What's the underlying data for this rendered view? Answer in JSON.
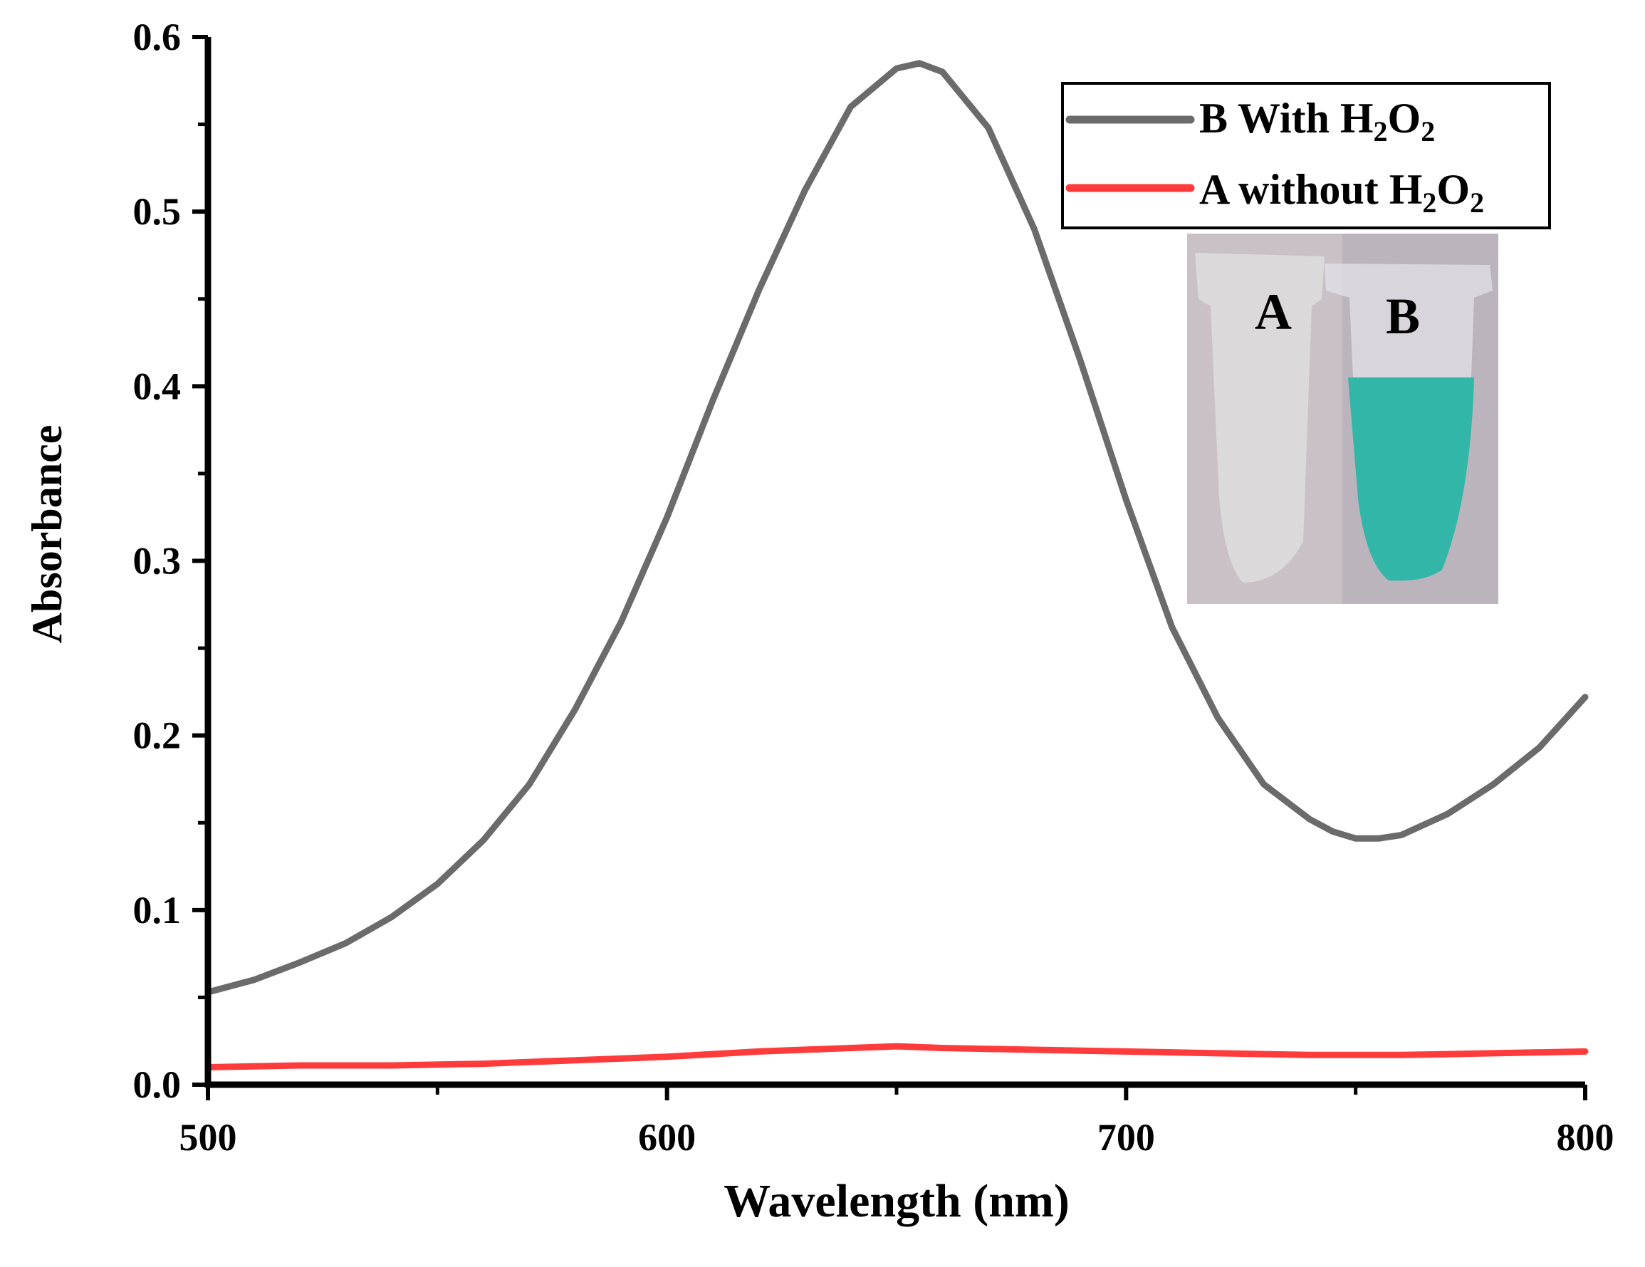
{
  "chart_data": {
    "type": "line",
    "title": "",
    "xlabel": "Wavelength (nm)",
    "ylabel": "Absorbance",
    "xlim": [
      500,
      800
    ],
    "ylim": [
      0.0,
      0.6
    ],
    "x_ticks": [
      "500",
      "600",
      "700",
      "800"
    ],
    "y_ticks": [
      "0.0",
      "0.1",
      "0.2",
      "0.3",
      "0.4",
      "0.5",
      "0.6"
    ],
    "x_tick_values": [
      500,
      600,
      700,
      800
    ],
    "y_tick_values": [
      0.0,
      0.1,
      0.2,
      0.3,
      0.4,
      0.5,
      0.6
    ],
    "legend_position": "top-right",
    "series": [
      {
        "name": "B With H2O2",
        "legend_label_main": "B With H",
        "legend_sub1": "2",
        "legend_mid": "O",
        "legend_sub2": "2",
        "color": "#6b6b6b",
        "x": [
          500,
          510,
          520,
          530,
          540,
          550,
          560,
          570,
          580,
          590,
          600,
          610,
          620,
          630,
          640,
          650,
          655,
          660,
          670,
          680,
          690,
          700,
          710,
          720,
          730,
          740,
          745,
          750,
          755,
          760,
          770,
          780,
          790,
          800
        ],
        "y": [
          0.053,
          0.06,
          0.07,
          0.081,
          0.096,
          0.115,
          0.14,
          0.172,
          0.215,
          0.265,
          0.325,
          0.392,
          0.455,
          0.512,
          0.56,
          0.582,
          0.585,
          0.58,
          0.548,
          0.49,
          0.415,
          0.335,
          0.262,
          0.21,
          0.172,
          0.152,
          0.145,
          0.141,
          0.141,
          0.143,
          0.155,
          0.172,
          0.193,
          0.222
        ]
      },
      {
        "name": "A without H2O2",
        "legend_label_main": "A without H",
        "legend_sub1": "2",
        "legend_mid": "O",
        "legend_sub2": "2",
        "color": "#ff3b3b",
        "x": [
          500,
          520,
          540,
          560,
          580,
          600,
          620,
          640,
          650,
          660,
          680,
          700,
          720,
          740,
          760,
          780,
          800
        ],
        "y": [
          0.01,
          0.011,
          0.011,
          0.012,
          0.014,
          0.016,
          0.019,
          0.021,
          0.022,
          0.021,
          0.02,
          0.019,
          0.018,
          0.017,
          0.017,
          0.018,
          0.019
        ]
      }
    ],
    "inset": {
      "label_a": "A",
      "label_b": "B",
      "tube_a_color": "#e6e6e6",
      "tube_b_color": "#32b6a8"
    }
  }
}
